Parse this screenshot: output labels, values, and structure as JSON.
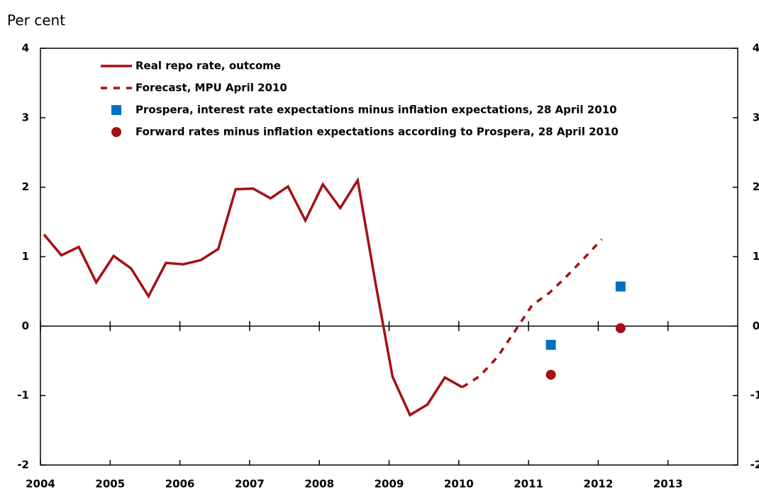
{
  "chart_data": {
    "type": "line",
    "y_axis_label": "Per cent",
    "xlim": [
      2004,
      2014
    ],
    "xticks": [
      2004,
      2005,
      2006,
      2007,
      2008,
      2009,
      2010,
      2011,
      2012,
      2013
    ],
    "ylim": [
      -2,
      4
    ],
    "yticks": [
      -2,
      -1,
      0,
      1,
      2,
      3,
      4
    ],
    "y2lim": [
      -2,
      4
    ],
    "y2ticks": [
      -2,
      -1,
      0,
      1,
      2,
      3,
      4
    ],
    "legend": "upper left",
    "series": [
      {
        "name": "Real repo rate, outcome",
        "color": "#a50f15",
        "style": "solid",
        "x": [
          2004.05,
          2004.3,
          2004.55,
          2004.8,
          2005.05,
          2005.3,
          2005.55,
          2005.8,
          2006.05,
          2006.3,
          2006.55,
          2006.8,
          2007.05,
          2007.3,
          2007.55,
          2007.8,
          2008.05,
          2008.3,
          2008.55,
          2008.8,
          2009.05,
          2009.3,
          2009.55,
          2009.8,
          2010.05
        ],
        "values": [
          1.32,
          1.02,
          1.14,
          0.63,
          1.01,
          0.83,
          0.43,
          0.91,
          0.89,
          0.95,
          1.11,
          1.97,
          1.98,
          1.84,
          2.01,
          1.52,
          2.04,
          1.7,
          2.1,
          0.65,
          -0.73,
          -1.28,
          -1.13,
          -0.74,
          -0.88
        ]
      },
      {
        "name": "Forecast, MPU April 2010",
        "color": "#a50f15",
        "style": "dashed",
        "x": [
          2010.05,
          2010.3,
          2010.55,
          2010.8,
          2011.05,
          2011.3,
          2011.55,
          2011.8,
          2012.05
        ],
        "values": [
          -0.88,
          -0.72,
          -0.45,
          -0.08,
          0.3,
          0.48,
          0.72,
          0.98,
          1.25
        ]
      },
      {
        "name": "Prospera, interest rate expectations minus inflation expectations, 28 April 2010",
        "color": "#0070c0",
        "style": "square",
        "x": [
          2011.32,
          2012.32
        ],
        "values": [
          -0.27,
          0.57
        ]
      },
      {
        "name": "Forward rates minus inflation expectations according to Prospera, 28 April 2010",
        "color": "#a50f15",
        "style": "circle",
        "x": [
          2011.32,
          2012.32
        ],
        "values": [
          -0.7,
          -0.03
        ]
      }
    ]
  }
}
